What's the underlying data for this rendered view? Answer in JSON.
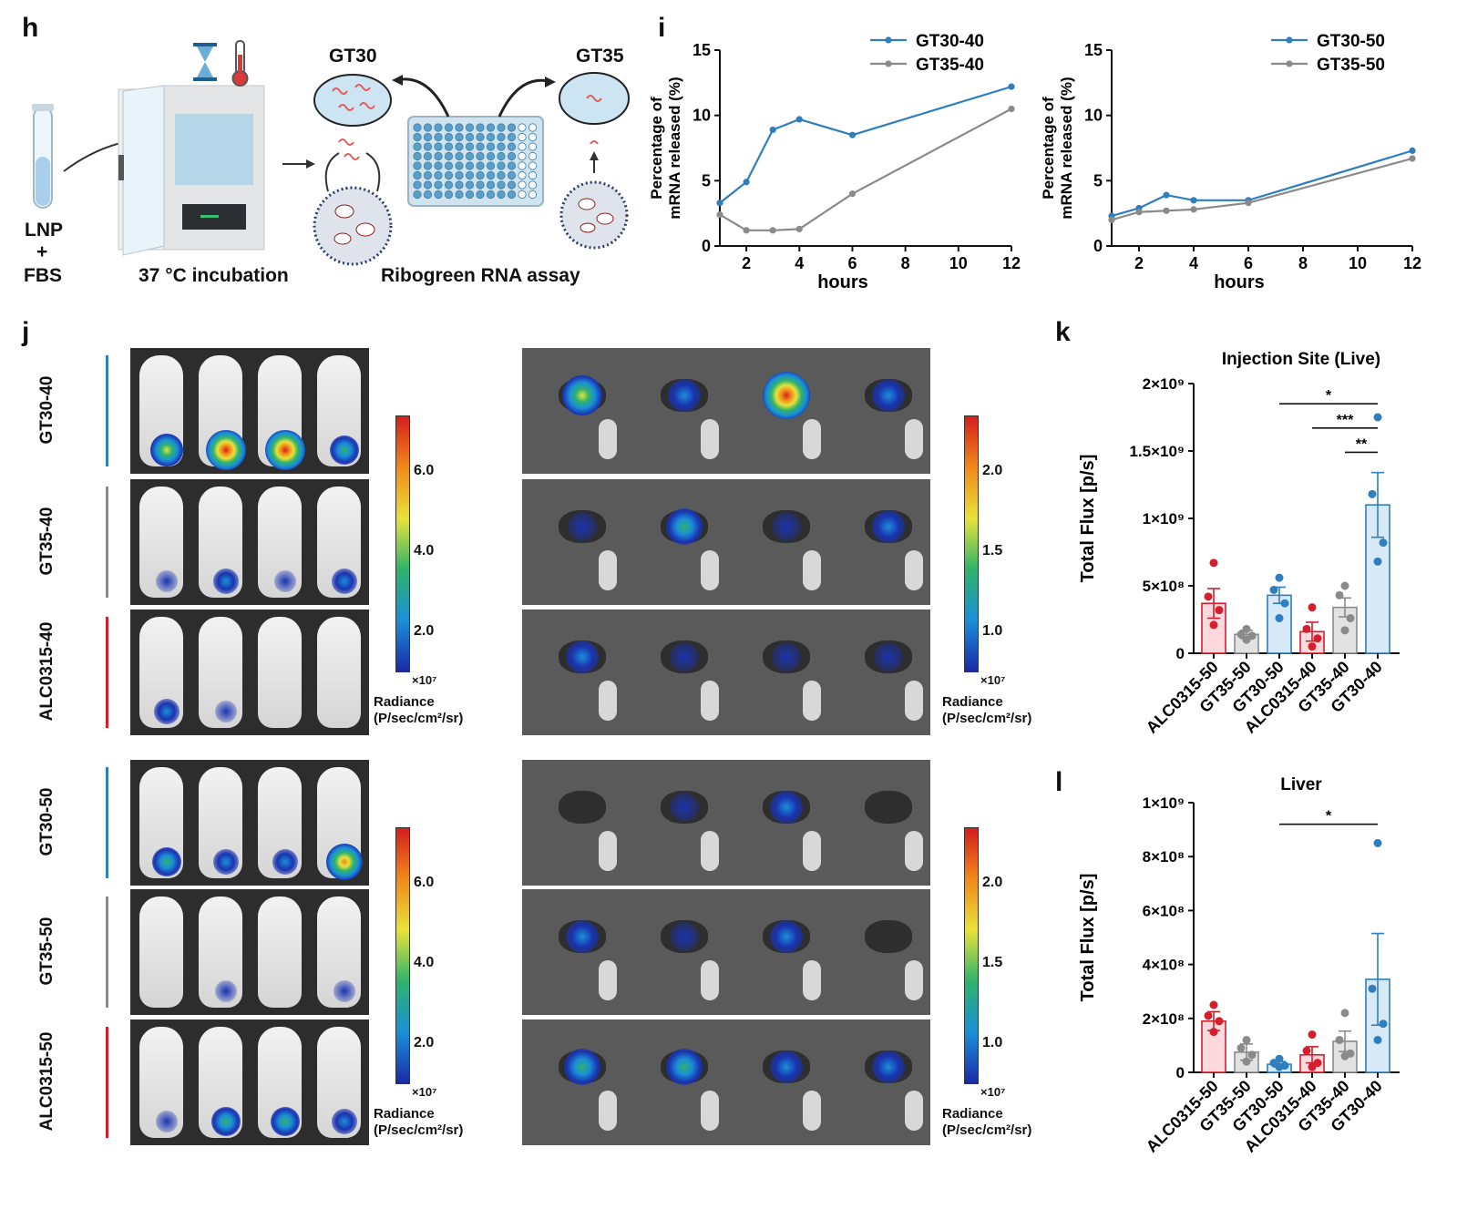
{
  "panels": {
    "h": "h",
    "i": "i",
    "j": "j",
    "k": "k",
    "l": "l"
  },
  "h": {
    "lnp": "LNP",
    "plus": "+",
    "fbs": "FBS",
    "incubation": "37 °C incubation",
    "assay": "Ribogreen RNA assay",
    "gt30": "GT30",
    "gt35": "GT35",
    "colors": {
      "plate": "#cfe4ee",
      "well": "#5b9fc9",
      "incubator": "#e7e8ea",
      "dish": "#cde4f2"
    }
  },
  "colors": {
    "blue": "#2f7fbf",
    "gray": "#8a8a8a",
    "red": "#d41f2c",
    "lightblue": "#d7e9f7",
    "lightred": "#fbd9dc",
    "lightgray": "#e2e2e2"
  },
  "chart_data": [
    {
      "type": "line",
      "xlabel": "hours",
      "ylabel": "Percentage of mRNA released (%)",
      "ylabel_lines": [
        "Percentage of",
        "mRNA released (%)"
      ],
      "xlim": [
        1,
        12
      ],
      "ylim": [
        0,
        15
      ],
      "xticks": [
        2,
        4,
        6,
        8,
        10,
        12
      ],
      "yticks": [
        0,
        5,
        10,
        15
      ],
      "x": [
        1,
        2,
        3,
        4,
        6,
        12
      ],
      "series": [
        {
          "name": "GT30-40",
          "color": "#2f7fbf",
          "values": [
            3.3,
            4.9,
            8.9,
            9.7,
            8.5,
            12.2
          ]
        },
        {
          "name": "GT35-40",
          "color": "#8a8a8a",
          "values": [
            2.4,
            1.2,
            1.2,
            1.3,
            4.0,
            10.5
          ]
        }
      ],
      "legend": "top-right"
    },
    {
      "type": "line",
      "xlabel": "hours",
      "ylabel": "Percentage of mRNA released (%)",
      "ylabel_lines": [
        "Percentage of",
        "mRNA released (%)"
      ],
      "xlim": [
        1,
        12
      ],
      "ylim": [
        0,
        15
      ],
      "xticks": [
        2,
        4,
        6,
        8,
        10,
        12
      ],
      "yticks": [
        0,
        5,
        10,
        15
      ],
      "x": [
        1,
        2,
        3,
        4,
        6,
        12
      ],
      "series": [
        {
          "name": "GT30-50",
          "color": "#2f7fbf",
          "values": [
            2.3,
            2.9,
            3.9,
            3.5,
            3.5,
            7.3
          ]
        },
        {
          "name": "GT35-50",
          "color": "#8a8a8a",
          "values": [
            2.0,
            2.6,
            2.7,
            2.8,
            3.3,
            6.7
          ]
        }
      ],
      "legend": "top-right"
    },
    {
      "type": "bar",
      "title": "Injection Site (Live)",
      "ylabel": "Total Flux [p/s]",
      "categories": [
        "ALC0315-50",
        "GT35-50",
        "GT30-50",
        "ALC0315-40",
        "GT35-40",
        "GT30-40"
      ],
      "values": [
        370000000.0,
        140000000.0,
        430000000.0,
        160000000.0,
        340000000.0,
        1100000000.0
      ],
      "errors": [
        110000000.0,
        30000000.0,
        60000000.0,
        70000000.0,
        70000000.0,
        240000000.0
      ],
      "points": [
        [
          670000000.0,
          420000000.0,
          320000000.0,
          210000000.0
        ],
        [
          180000000.0,
          140000000.0,
          130000000.0,
          100000000.0
        ],
        [
          560000000.0,
          470000000.0,
          370000000.0,
          260000000.0
        ],
        [
          340000000.0,
          180000000.0,
          110000000.0,
          50000000.0
        ],
        [
          500000000.0,
          430000000.0,
          260000000.0,
          170000000.0
        ],
        [
          1750000000.0,
          1180000000.0,
          820000000.0,
          680000000.0
        ]
      ],
      "bar_colors": [
        "red",
        "gray",
        "blue",
        "red",
        "gray",
        "blue"
      ],
      "ylim": [
        0,
        2000000000.0
      ],
      "yticks": [
        0,
        500000000.0,
        1000000000.0,
        1500000000.0,
        2000000000.0
      ],
      "ytick_labels": [
        "0",
        "5×10⁸",
        "1×10⁹",
        "1.5×10⁹",
        "2×10⁹"
      ],
      "significance": [
        {
          "from": 2,
          "to": 5,
          "label": "*",
          "y": 1850000000.0
        },
        {
          "from": 3,
          "to": 5,
          "label": "***",
          "y": 1670000000.0
        },
        {
          "from": 4,
          "to": 5,
          "label": "**",
          "y": 1490000000.0
        }
      ]
    },
    {
      "type": "bar",
      "title": "Liver",
      "ylabel": "Total Flux [p/s]",
      "categories": [
        "ALC0315-50",
        "GT35-50",
        "GT30-50",
        "ALC0315-40",
        "GT35-40",
        "GT30-40"
      ],
      "values": [
        190000000.0,
        75000000.0,
        30000000.0,
        65000000.0,
        115000000.0,
        345000000.0
      ],
      "errors": [
        35000000.0,
        30000000.0,
        10000000.0,
        30000000.0,
        38000000.0,
        170000000.0
      ],
      "points": [
        [
          250000000.0,
          210000000.0,
          190000000.0,
          150000000.0
        ],
        [
          120000000.0,
          90000000.0,
          65000000.0,
          40000000.0
        ],
        [
          50000000.0,
          35000000.0,
          25000000.0,
          20000000.0
        ],
        [
          140000000.0,
          80000000.0,
          35000000.0,
          20000000.0
        ],
        [
          220000000.0,
          120000000.0,
          70000000.0,
          60000000.0
        ],
        [
          850000000.0,
          310000000.0,
          180000000.0,
          120000000.0
        ]
      ],
      "bar_colors": [
        "red",
        "gray",
        "blue",
        "red",
        "gray",
        "blue"
      ],
      "ylim": [
        0,
        1000000000.0
      ],
      "yticks": [
        0,
        200000000.0,
        400000000.0,
        600000000.0,
        800000000.0,
        1000000000.0
      ],
      "ytick_labels": [
        "0",
        "2×10⁸",
        "4×10⁸",
        "6×10⁸",
        "8×10⁸",
        "1×10⁹"
      ],
      "significance": [
        {
          "from": 2,
          "to": 5,
          "label": "*",
          "y": 920000000.0
        }
      ]
    }
  ],
  "j": {
    "groups": [
      "GT30-40",
      "GT35-40",
      "ALC0315-40",
      "GT30-50",
      "GT35-50",
      "ALC0315-50"
    ],
    "group_colors": [
      "#2f7fbf",
      "#8a8a8a",
      "#d41f2c",
      "#2f7fbf",
      "#8a8a8a",
      "#d41f2c"
    ],
    "colorbar_left": {
      "ticks": [
        "6.0",
        "4.0",
        "2.0"
      ],
      "unit": "×10⁷"
    },
    "colorbar_right": {
      "ticks": [
        "2.0",
        "1.5",
        "1.0"
      ],
      "unit": "×10⁷"
    },
    "radiance": "Radiance",
    "radiance_unit": "(P/sec/cm²/sr)"
  }
}
